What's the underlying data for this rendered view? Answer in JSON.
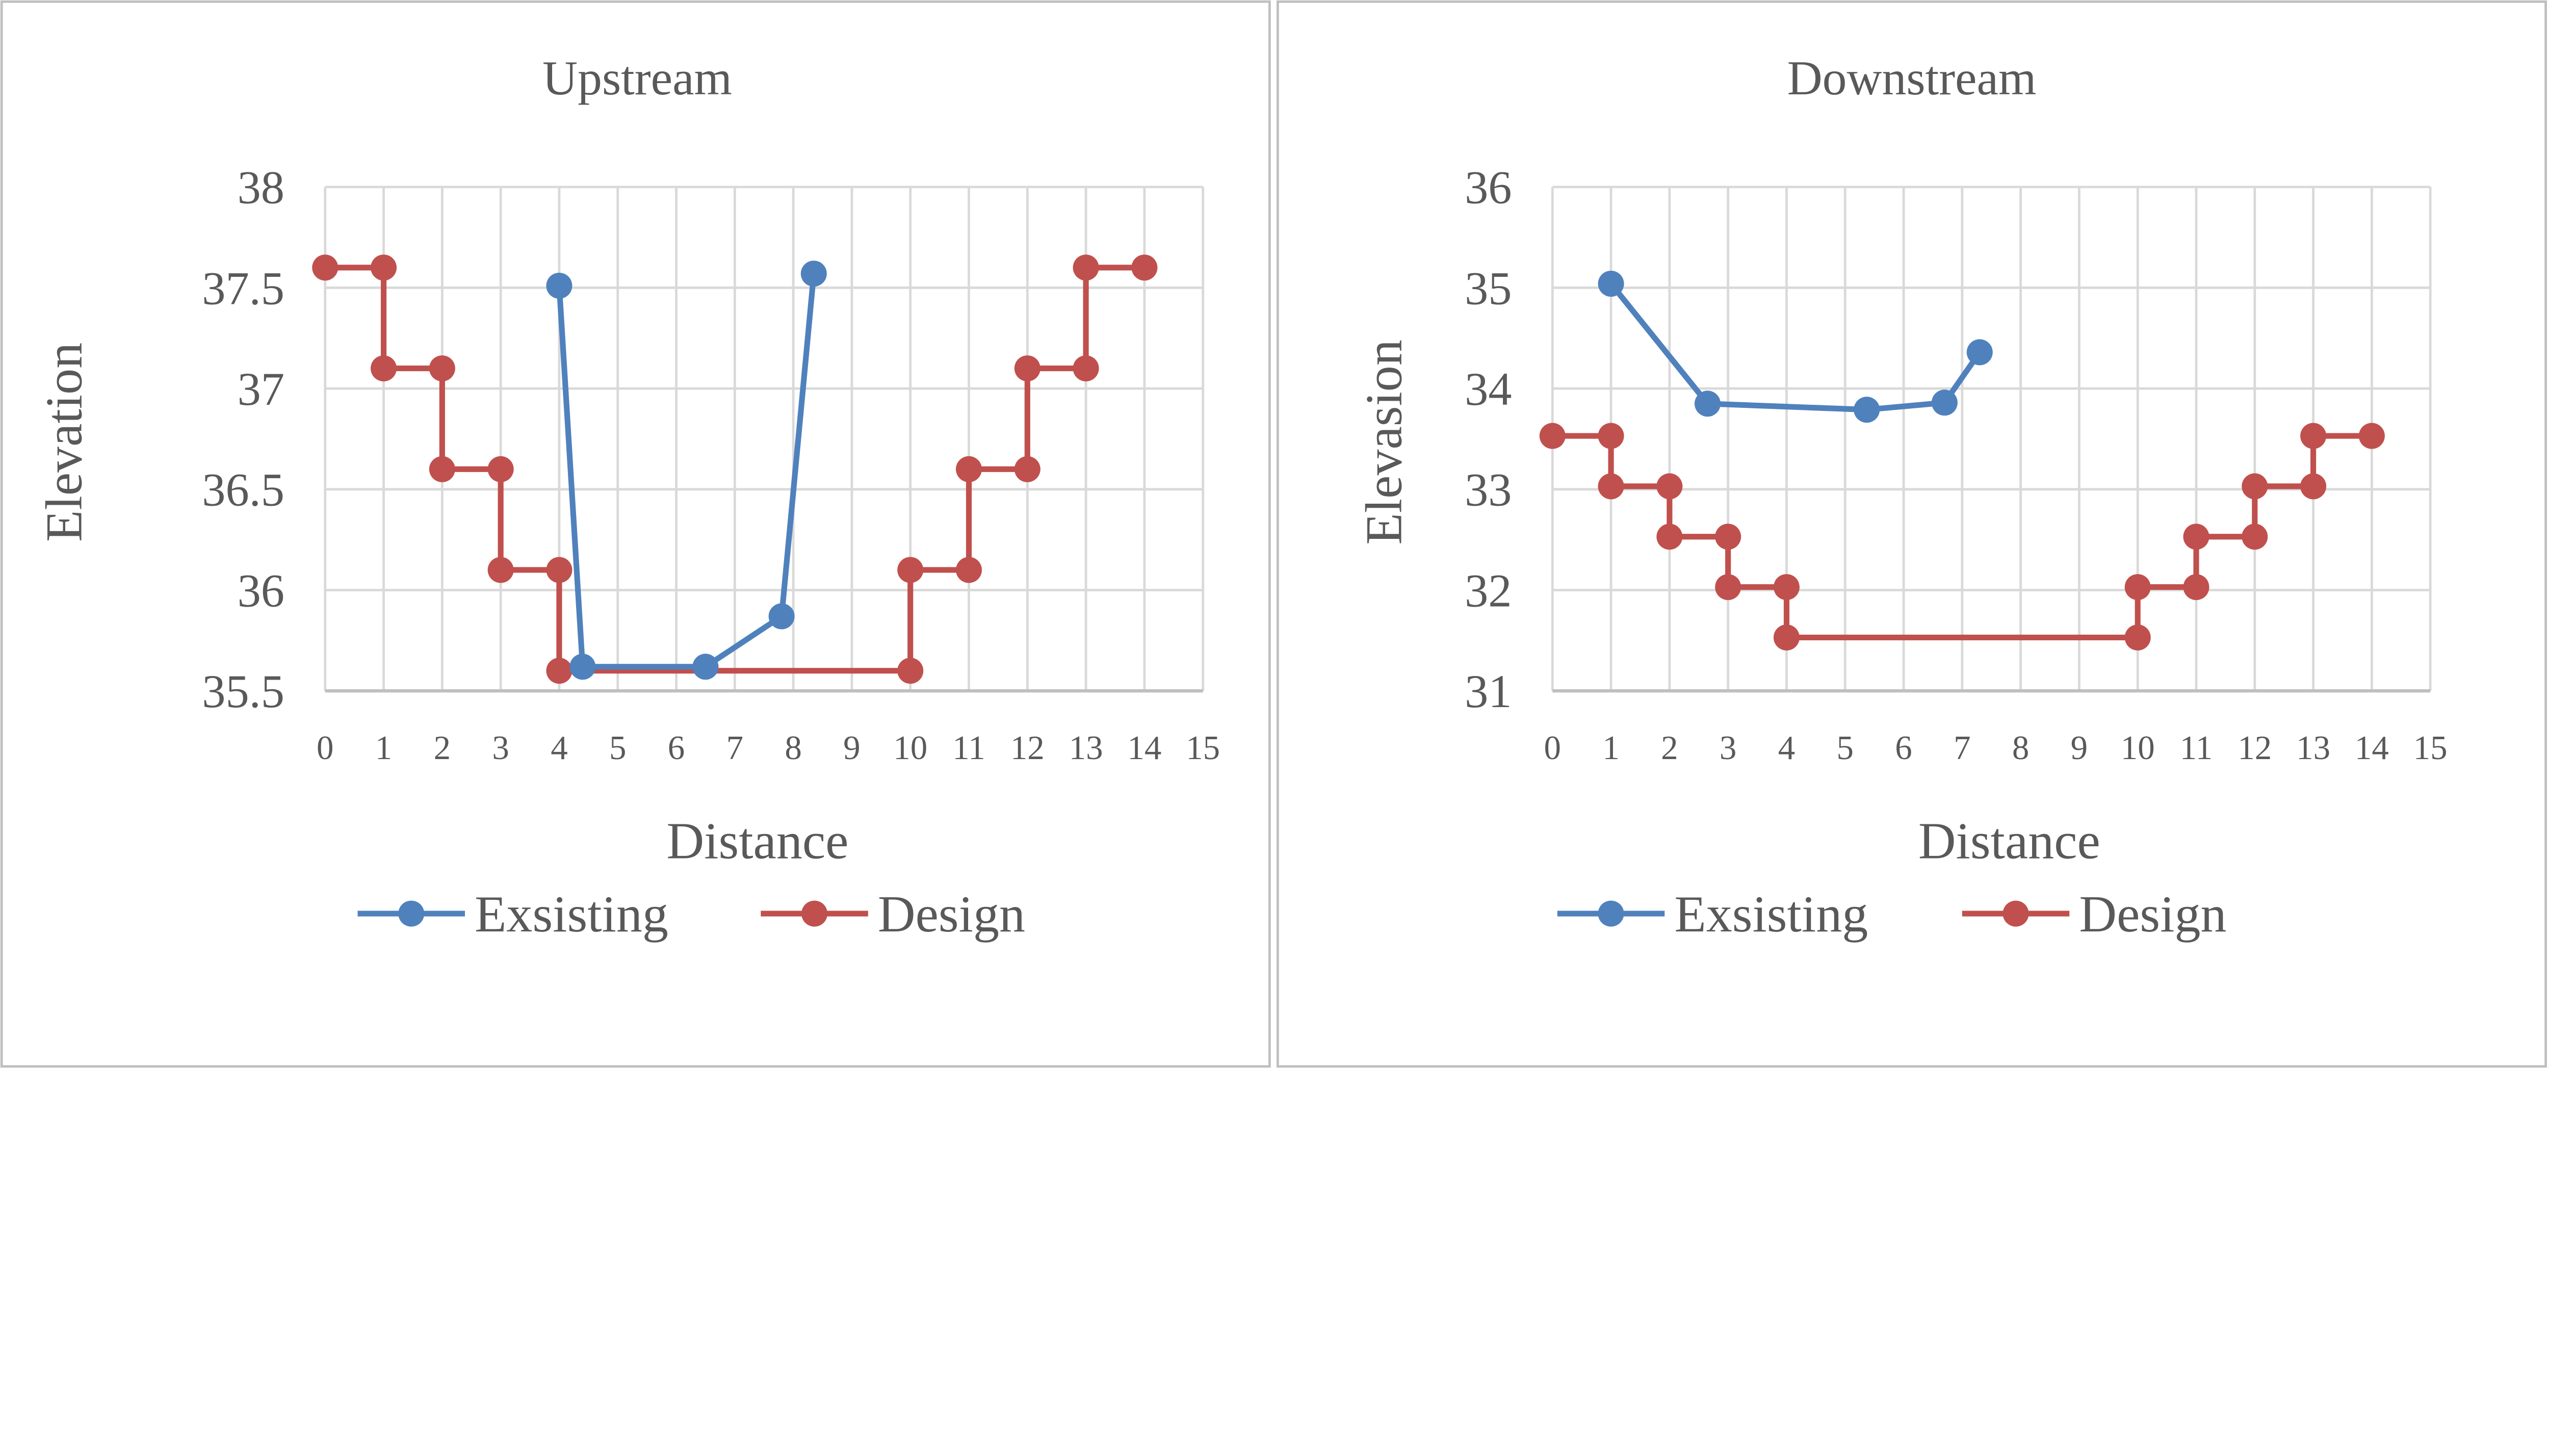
{
  "colors": {
    "existing": "#4f81bd",
    "design": "#c0504d",
    "grid": "#d9d9d9",
    "text": "#595959"
  },
  "chart_data": [
    {
      "type": "scatter",
      "title": "Upstream",
      "xlabel": "Distance",
      "ylabel": "Elevation",
      "xlim": [
        0,
        15
      ],
      "ylim": [
        35.5,
        38
      ],
      "xticks": [
        0,
        1,
        2,
        3,
        4,
        5,
        6,
        7,
        8,
        9,
        10,
        11,
        12,
        13,
        14,
        15
      ],
      "yticks": [
        35.5,
        36,
        36.5,
        37,
        37.5,
        38
      ],
      "ytick_labels": [
        "35.5",
        "36",
        "36.5",
        "37",
        "37.5",
        "38"
      ],
      "grid": true,
      "legend": "bottom",
      "series": [
        {
          "name": "Exsisting",
          "x": [
            4.0,
            4.4,
            6.5,
            7.8,
            8.35
          ],
          "y": [
            37.51,
            35.62,
            35.62,
            35.87,
            37.57
          ]
        },
        {
          "name": "Design",
          "x": [
            0,
            1,
            1,
            2,
            2,
            3,
            3,
            4,
            4,
            10,
            10,
            11,
            11,
            12,
            12,
            13,
            13,
            14
          ],
          "y": [
            37.6,
            37.6,
            37.1,
            37.1,
            36.6,
            36.6,
            36.1,
            36.1,
            35.6,
            35.6,
            36.1,
            36.1,
            36.6,
            36.6,
            37.1,
            37.1,
            37.6,
            37.6
          ]
        }
      ]
    },
    {
      "type": "scatter",
      "title": "Downstream",
      "xlabel": "Distance",
      "ylabel": "Elevasion",
      "xlim": [
        0,
        15
      ],
      "ylim": [
        31,
        36
      ],
      "xticks": [
        0,
        1,
        2,
        3,
        4,
        5,
        6,
        7,
        8,
        9,
        10,
        11,
        12,
        13,
        14,
        15
      ],
      "yticks": [
        31,
        32,
        33,
        34,
        35,
        36
      ],
      "ytick_labels": [
        "31",
        "32",
        "33",
        "34",
        "35",
        "36"
      ],
      "grid": true,
      "legend": "bottom",
      "series": [
        {
          "name": "Exsisting",
          "x": [
            1.0,
            2.65,
            5.37,
            6.7,
            7.3
          ],
          "y": [
            35.04,
            33.85,
            33.79,
            33.86,
            34.36
          ]
        },
        {
          "name": "Design",
          "x": [
            0,
            1,
            1,
            2,
            2,
            3,
            3,
            4,
            4,
            10,
            10,
            11,
            11,
            12,
            12,
            13,
            13,
            14
          ],
          "y": [
            33.53,
            33.53,
            33.03,
            33.03,
            32.53,
            32.53,
            32.03,
            32.03,
            31.53,
            31.53,
            32.03,
            32.03,
            32.53,
            32.53,
            33.03,
            33.03,
            33.53,
            33.53
          ]
        }
      ]
    }
  ]
}
